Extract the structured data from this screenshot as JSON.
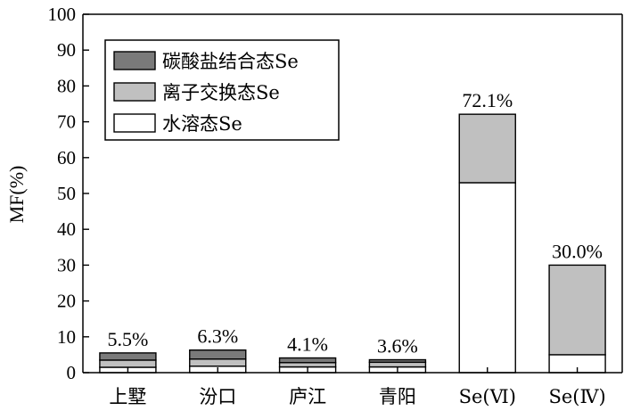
{
  "chart_data": {
    "type": "bar",
    "stacked": true,
    "categories": [
      "上墅",
      "汾口",
      "庐江",
      "青阳",
      "Se(Ⅵ)",
      "Se(Ⅳ)"
    ],
    "series": [
      {
        "name": "水溶态Se",
        "values": [
          1.5,
          1.8,
          1.6,
          1.6,
          53.0,
          5.0
        ],
        "color": "#ffffff"
      },
      {
        "name": "离子交换态Se",
        "values": [
          2.0,
          2.0,
          1.2,
          1.3,
          19.1,
          25.0
        ],
        "color": "#c0c0c0"
      },
      {
        "name": "碳酸盐结合态Se",
        "values": [
          2.0,
          2.5,
          1.3,
          0.7,
          0.0,
          0.0
        ],
        "color": "#7a7a7a"
      }
    ],
    "totals": [
      "5.5%",
      "6.3%",
      "4.1%",
      "3.6%",
      "72.1%",
      "30.0%"
    ],
    "title": "",
    "xlabel": "",
    "ylabel": "MF(%)",
    "ylim": [
      0,
      100
    ],
    "yticks": [
      0,
      10,
      20,
      30,
      40,
      50,
      60,
      70,
      80,
      90,
      100
    ],
    "grid": false,
    "legend": {
      "position": "top-left",
      "entries": [
        "碳酸盐结合态Se",
        "离子交换态Se",
        "水溶态Se"
      ]
    }
  }
}
